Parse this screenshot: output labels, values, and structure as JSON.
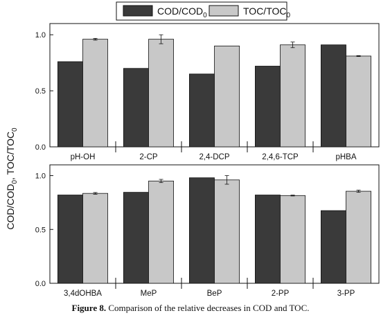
{
  "legend": {
    "series_a": {
      "base": "COD/COD",
      "sub": "0"
    },
    "series_b": {
      "base": "TOC/TOC",
      "sub": "0"
    }
  },
  "ylabel": {
    "p1": "COD/COD",
    "s1": "0",
    "p2": ", TOC/TOC",
    "s2": "0"
  },
  "caption": {
    "label": "Figure 8.",
    "text": " Comparison of the relative decreases in COD and TOC."
  },
  "colors": {
    "cod": "#3a3a3a",
    "toc": "#c8c8c8",
    "axis": "#111111"
  },
  "chart_data": [
    {
      "type": "bar",
      "categories": [
        "pH-OH",
        "2-CP",
        "2,4-DCP",
        "2,4,6-TCP",
        "pHBA"
      ],
      "series": [
        {
          "name": "COD/COD0",
          "values": [
            0.76,
            0.7,
            0.65,
            0.72,
            0.91
          ],
          "errors": [
            0,
            0,
            0,
            0,
            0
          ]
        },
        {
          "name": "TOC/TOC0",
          "values": [
            0.96,
            0.96,
            0.9,
            0.91,
            0.81
          ],
          "errors": [
            0.008,
            0.04,
            0,
            0.025,
            0.004
          ]
        }
      ],
      "yticks": [
        0.0,
        0.5,
        1.0
      ],
      "ytick_labels": [
        "0.0",
        "0.5",
        "1.0"
      ],
      "ylim": [
        0,
        1.1
      ]
    },
    {
      "type": "bar",
      "categories": [
        "3,4dOHBA",
        "MeP",
        "BeP",
        "2-PP",
        "3-PP"
      ],
      "series": [
        {
          "name": "COD/COD0",
          "values": [
            0.82,
            0.845,
            0.98,
            0.82,
            0.675
          ],
          "errors": [
            0,
            0,
            0,
            0,
            0
          ]
        },
        {
          "name": "TOC/TOC0",
          "values": [
            0.835,
            0.95,
            0.96,
            0.815,
            0.855
          ],
          "errors": [
            0.008,
            0.015,
            0.04,
            0.004,
            0.01
          ]
        }
      ],
      "yticks": [
        0.0,
        0.5,
        1.0
      ],
      "ytick_labels": [
        "0.0",
        "0.5",
        "1.0"
      ],
      "ylim": [
        0,
        1.1
      ]
    }
  ]
}
